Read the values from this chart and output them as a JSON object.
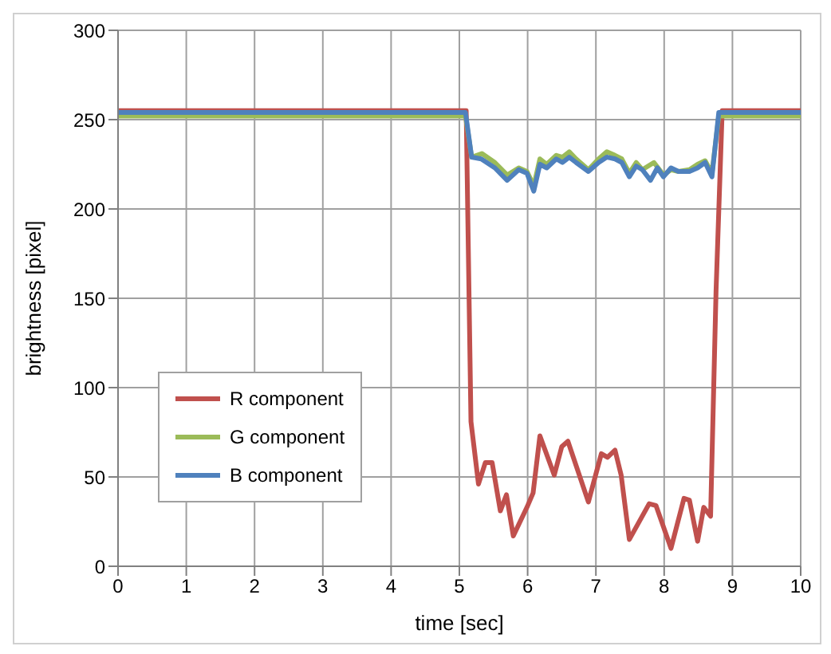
{
  "chart_data": {
    "type": "line",
    "xlabel": "time [sec]",
    "ylabel": "brightness [pixel]",
    "xlim": [
      0,
      10
    ],
    "xticks": [
      0,
      1,
      2,
      3,
      4,
      5,
      6,
      7,
      8,
      9,
      10
    ],
    "ylim": [
      0,
      300
    ],
    "yticks": [
      0,
      50,
      100,
      150,
      200,
      250,
      300
    ],
    "grid": true,
    "legend": "bottom left",
    "marker": "none",
    "line_style": "solid",
    "series": [
      {
        "name": "R component",
        "color": "#c0504d",
        "x": [
          0,
          5.1,
          5.17,
          5.28,
          5.38,
          5.48,
          5.6,
          5.69,
          5.79,
          5.99,
          6.08,
          6.18,
          6.39,
          6.5,
          6.59,
          6.89,
          7.08,
          7.17,
          7.28,
          7.37,
          7.49,
          7.78,
          7.88,
          8.1,
          8.29,
          8.37,
          8.49,
          8.58,
          8.68,
          8.76,
          8.85,
          10
        ],
        "values": [
          255,
          255,
          81,
          46,
          58,
          58,
          31,
          40,
          17,
          33,
          41,
          73,
          51,
          67,
          70,
          36,
          63,
          61,
          65,
          51,
          15,
          35,
          34,
          10,
          38,
          37,
          14,
          33,
          28,
          154,
          255,
          255
        ]
      },
      {
        "name": "G component",
        "color": "#9bbb59",
        "x": [
          0,
          5.09,
          5.18,
          5.33,
          5.52,
          5.7,
          5.87,
          5.99,
          6.09,
          6.18,
          6.28,
          6.42,
          6.51,
          6.61,
          6.71,
          6.89,
          7.04,
          7.16,
          7.28,
          7.38,
          7.49,
          7.59,
          7.68,
          7.85,
          7.99,
          8.1,
          8.21,
          8.37,
          8.49,
          8.6,
          8.7,
          8.8,
          10
        ],
        "values": [
          252,
          252,
          229,
          231,
          226,
          219,
          223,
          221,
          213,
          228,
          225,
          230,
          229,
          232,
          228,
          222,
          228,
          232,
          230,
          228,
          220,
          226,
          222,
          226,
          219,
          222,
          221,
          222,
          225,
          227,
          220,
          252,
          252
        ]
      },
      {
        "name": "B component",
        "color": "#4f81bd",
        "x": [
          0,
          5.09,
          5.18,
          5.32,
          5.52,
          5.7,
          5.87,
          5.99,
          6.09,
          6.18,
          6.28,
          6.42,
          6.51,
          6.61,
          6.71,
          6.89,
          7.04,
          7.16,
          7.28,
          7.38,
          7.49,
          7.59,
          7.68,
          7.8,
          7.9,
          7.99,
          8.1,
          8.21,
          8.37,
          8.49,
          8.6,
          8.7,
          8.8,
          10
        ],
        "values": [
          254,
          254,
          229,
          228,
          223,
          216,
          222,
          220,
          210,
          225,
          223,
          228,
          226,
          229,
          226,
          221,
          226,
          229,
          228,
          226,
          218,
          224,
          222,
          216,
          223,
          218,
          223,
          221,
          221,
          223,
          226,
          218,
          254,
          254
        ]
      }
    ]
  }
}
